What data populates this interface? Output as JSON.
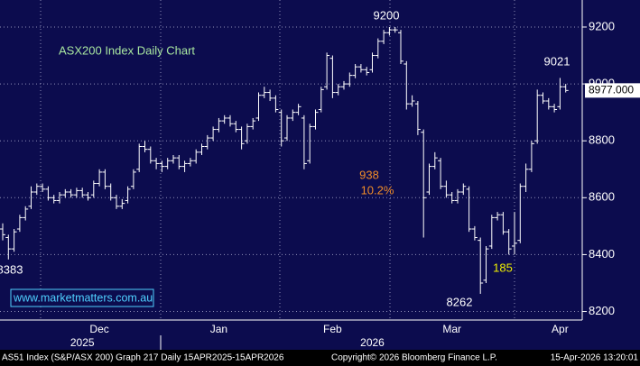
{
  "chart_data": {
    "type": "ohlc",
    "title": "ASX200 Index Daily Chart",
    "color": "#ffffff",
    "categories": [
      null,
      null,
      null,
      null,
      null,
      null,
      null,
      null,
      null,
      null,
      null,
      null,
      null,
      null,
      null,
      null,
      null,
      "Dec",
      null,
      null,
      null,
      null,
      null,
      null,
      null,
      null,
      null,
      null,
      null,
      null,
      null,
      null,
      null,
      null,
      null,
      null,
      null,
      null,
      "Jan",
      null,
      null,
      null,
      null,
      null,
      null,
      null,
      null,
      null,
      null,
      null,
      null,
      null,
      null,
      null,
      null,
      null,
      null,
      null,
      "Feb",
      null,
      null,
      null,
      null,
      null,
      null,
      null,
      null,
      null,
      null,
      null,
      null,
      null,
      null,
      null,
      null,
      null,
      null,
      null,
      null,
      "Mar",
      null,
      null,
      null,
      null,
      null,
      null,
      null,
      null,
      null,
      null,
      null,
      null,
      null,
      null,
      null,
      null,
      null,
      null,
      "Apr",
      null
    ],
    "year_labels": [
      null,
      null,
      null,
      null,
      null,
      null,
      null,
      null,
      null,
      null,
      null,
      null,
      null,
      null,
      "2025",
      null,
      null,
      null,
      null,
      null,
      null,
      null,
      null,
      null,
      null,
      null,
      null,
      null,
      null,
      null,
      null,
      null,
      null,
      null,
      null,
      null,
      null,
      null,
      null,
      null,
      null,
      null,
      null,
      null,
      null,
      null,
      null,
      null,
      null,
      null,
      null,
      null,
      null,
      null,
      null,
      null,
      null,
      null,
      null,
      null,
      null,
      null,
      null,
      null,
      null,
      "2026",
      null,
      null,
      null,
      null,
      null,
      null,
      null,
      null,
      null,
      null,
      null,
      null,
      null,
      null,
      null,
      null,
      null,
      null,
      null,
      null,
      null,
      null,
      null,
      null,
      null,
      null,
      null,
      null,
      null,
      null,
      null,
      null,
      null,
      null
    ],
    "open": [
      8490,
      8460,
      8420,
      8490,
      8530,
      8570,
      8620,
      8640,
      8630,
      8600,
      8590,
      8610,
      8620,
      8610,
      8625,
      8610,
      8610,
      8650,
      8690,
      8640,
      8600,
      8570,
      8590,
      8640,
      8700,
      8780,
      8770,
      8730,
      8720,
      8710,
      8730,
      8740,
      8710,
      8720,
      8730,
      8760,
      8780,
      8810,
      8840,
      8870,
      8880,
      8860,
      8840,
      8800,
      8850,
      8880,
      8960,
      8970,
      8950,
      8900,
      8810,
      8880,
      8900,
      8880,
      8730,
      8850,
      8910,
      8990,
      9090,
      8970,
      8990,
      9000,
      9030,
      9060,
      9050,
      9050,
      9100,
      9150,
      9180,
      9190,
      9180,
      9070,
      8930,
      8930,
      8830,
      8620,
      8710,
      8730,
      8640,
      8610,
      8590,
      8620,
      8630,
      8490,
      8450,
      8310,
      8430,
      8530,
      8540,
      8480,
      8430,
      8450,
      8640,
      8700,
      8800,
      8960,
      8940,
      8920,
      8920,
      8990
    ],
    "high": [
      8510,
      8470,
      8490,
      8540,
      8570,
      8640,
      8650,
      8650,
      8640,
      8610,
      8620,
      8630,
      8630,
      8635,
      8635,
      8620,
      8660,
      8700,
      8700,
      8650,
      8610,
      8595,
      8640,
      8700,
      8790,
      8800,
      8780,
      8740,
      8730,
      8740,
      8750,
      8750,
      8730,
      8740,
      8770,
      8790,
      8820,
      8850,
      8880,
      8890,
      8890,
      8870,
      8850,
      8860,
      8880,
      8970,
      8990,
      8980,
      8960,
      8910,
      8890,
      8910,
      8930,
      8890,
      8860,
      8910,
      8990,
      9110,
      9100,
      9000,
      9010,
      9040,
      9070,
      9070,
      9060,
      9110,
      9160,
      9190,
      9200,
      9200,
      9190,
      9080,
      8960,
      8940,
      8840,
      8720,
      8760,
      8740,
      8660,
      8620,
      8630,
      8650,
      8640,
      8500,
      8460,
      8430,
      8540,
      8550,
      8550,
      8490,
      8550,
      8650,
      8720,
      8800,
      8980,
      8970,
      8950,
      8930,
      9021,
      9000
    ],
    "low": [
      8450,
      8383,
      8410,
      8480,
      8520,
      8560,
      8610,
      8620,
      8590,
      8580,
      8580,
      8600,
      8600,
      8600,
      8600,
      8590,
      8600,
      8640,
      8630,
      8590,
      8560,
      8560,
      8580,
      8630,
      8690,
      8760,
      8720,
      8700,
      8690,
      8700,
      8720,
      8700,
      8690,
      8710,
      8720,
      8750,
      8770,
      8800,
      8830,
      8860,
      8850,
      8830,
      8770,
      8790,
      8840,
      8870,
      8950,
      8940,
      8900,
      8780,
      8800,
      8870,
      8890,
      8700,
      8720,
      8840,
      8900,
      8980,
      8950,
      8960,
      8980,
      8990,
      9020,
      9040,
      9030,
      9040,
      9090,
      9140,
      9170,
      9180,
      9070,
      8910,
      8920,
      8820,
      8460,
      8610,
      8700,
      8630,
      8600,
      8580,
      8580,
      8610,
      8480,
      8450,
      8262,
      8300,
      8420,
      8520,
      8470,
      8400,
      8400,
      8440,
      8620,
      8690,
      8790,
      8930,
      8910,
      8900,
      8910,
      8970
    ],
    "close": [
      8470,
      8420,
      8480,
      8530,
      8560,
      8620,
      8640,
      8630,
      8600,
      8590,
      8610,
      8620,
      8610,
      8625,
      8610,
      8600,
      8650,
      8690,
      8640,
      8600,
      8570,
      8580,
      8630,
      8690,
      8780,
      8770,
      8730,
      8720,
      8710,
      8730,
      8740,
      8710,
      8720,
      8730,
      8760,
      8780,
      8810,
      8840,
      8870,
      8880,
      8860,
      8840,
      8790,
      8850,
      8870,
      8960,
      8970,
      8950,
      8910,
      8800,
      8880,
      8900,
      8920,
      8720,
      8850,
      8900,
      8980,
      9100,
      8970,
      8990,
      9000,
      9030,
      9060,
      9050,
      9040,
      9100,
      9150,
      9180,
      9190,
      9190,
      9080,
      8930,
      8940,
      8840,
      8600,
      8710,
      8740,
      8640,
      8610,
      8590,
      8620,
      8640,
      8490,
      8460,
      8300,
      8420,
      8530,
      8540,
      8480,
      8420,
      8440,
      8640,
      8700,
      8790,
      8960,
      8940,
      8920,
      8910,
      8990,
      8977
    ],
    "ylim": [
      8170,
      9295
    ],
    "yticks": [
      8200,
      8400,
      8600,
      8800,
      9000,
      9200
    ],
    "grid": true,
    "last_label": {
      "value": 8977,
      "label": "8977.000"
    },
    "annotations": [
      "9200",
      "9021",
      "938",
      "10.2%",
      "185",
      "8262",
      "8383"
    ],
    "website": "www.marketmatters.com.au",
    "footer": [
      "AS51 Index (S&P/ASX 200) Graph 217 Daily 15APR2025-15APR2026",
      "Copyright© 2026 Bloomberg Finance L.P.",
      "15-Apr-2026 13:20:01"
    ]
  }
}
